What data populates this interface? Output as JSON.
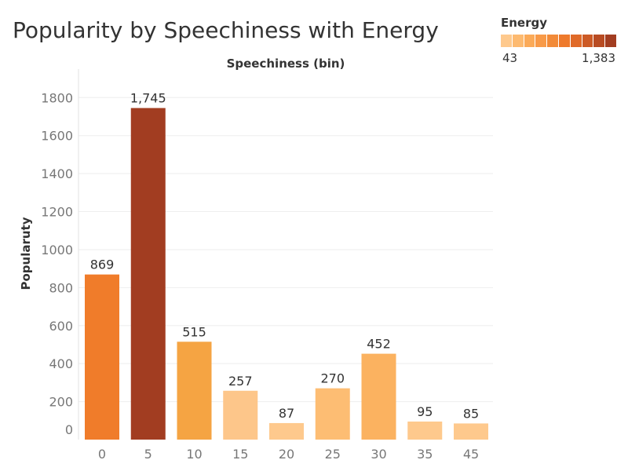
{
  "chart_data": {
    "type": "bar",
    "title": "Popularity by Speechiness with Energy",
    "xlabel": "Speechiness (bin)",
    "ylabel": "Popularuty",
    "categories": [
      "0",
      "5",
      "10",
      "15",
      "20",
      "25",
      "30",
      "35",
      "45"
    ],
    "values": [
      869,
      1745,
      515,
      257,
      87,
      270,
      452,
      95,
      85
    ],
    "data_labels": [
      "869",
      "1,745",
      "515",
      "257",
      "87",
      "270",
      "452",
      "95",
      "85"
    ],
    "bar_colors": [
      "#F07C2A",
      "#A23D21",
      "#F5A443",
      "#FDC68A",
      "#FEC98D",
      "#FDBD73",
      "#FBB260",
      "#FEC98D",
      "#FEC98D"
    ],
    "ylim": [
      0,
      1950
    ],
    "yticks": [
      0,
      200,
      400,
      600,
      800,
      1000,
      1200,
      1400,
      1600,
      1800
    ],
    "ytick_labels": [
      "0",
      "200",
      "400",
      "600",
      "800",
      "1000",
      "1200",
      "1400",
      "1600",
      "1800"
    ],
    "grid": true,
    "legend": {
      "title": "Energy",
      "min_label": "43",
      "max_label": "1,383",
      "ramp_colors": [
        "#FEC98D",
        "#FDBA70",
        "#FBAA58",
        "#F89A48",
        "#F28A38",
        "#EE7A2C",
        "#E06A28",
        "#CC5A25",
        "#B84B22",
        "#A23D21"
      ],
      "position": "top-right"
    }
  }
}
